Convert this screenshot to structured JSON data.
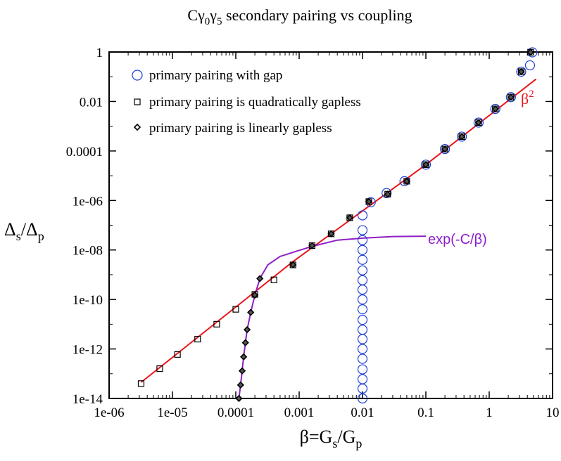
{
  "chart_data": {
    "type": "scatter",
    "title": "Cγ0γ5 secondary pairing vs coupling",
    "title_parts": {
      "main": "Cγ",
      "sub1": "0",
      "mid": "γ",
      "sub2": "5",
      "rest": " secondary pairing vs coupling"
    },
    "xlabel": "β=Gs/Gp",
    "xlabel_parts": {
      "a": "β=G",
      "sub_a": "s",
      "b": "/G",
      "sub_b": "p"
    },
    "ylabel": "Δs/Δp",
    "ylabel_parts": {
      "a": "Δ",
      "sub_a": "s",
      "b": "/Δ",
      "sub_b": "p"
    },
    "x_scale": "log",
    "y_scale": "log",
    "xlim": [
      1e-06,
      10
    ],
    "ylim": [
      1e-14,
      1
    ],
    "x_ticks": [
      {
        "value": 1e-06,
        "label": "1e-06"
      },
      {
        "value": 1e-05,
        "label": "1e-05"
      },
      {
        "value": 0.0001,
        "label": "0.0001"
      },
      {
        "value": 0.001,
        "label": "0.001"
      },
      {
        "value": 0.01,
        "label": "0.01"
      },
      {
        "value": 0.1,
        "label": "0.1"
      },
      {
        "value": 1,
        "label": "1"
      },
      {
        "value": 10,
        "label": "10"
      }
    ],
    "y_ticks": [
      {
        "value": 1,
        "label": "1"
      },
      {
        "value": 0.01,
        "label": "0.01"
      },
      {
        "value": 0.0001,
        "label": "0.0001"
      },
      {
        "value": 1e-06,
        "label": "1e-06"
      },
      {
        "value": 1e-08,
        "label": "1e-08"
      },
      {
        "value": 1e-10,
        "label": "1e-10"
      },
      {
        "value": 1e-12,
        "label": "1e-12"
      },
      {
        "value": 1e-14,
        "label": "1e-14"
      }
    ],
    "grid": false,
    "legend_position": "top-left",
    "series": [
      {
        "name": "primary pairing with gap",
        "marker": "circle",
        "color": "#1f3fd6",
        "points": [
          [
            0.01,
            1e-14
          ],
          [
            0.01,
            2.5e-14
          ],
          [
            0.01,
            6e-14
          ],
          [
            0.01,
            1.5e-13
          ],
          [
            0.01,
            4e-13
          ],
          [
            0.01,
            1e-12
          ],
          [
            0.01,
            2.5e-12
          ],
          [
            0.01,
            6e-12
          ],
          [
            0.01,
            1.5e-11
          ],
          [
            0.01,
            4e-11
          ],
          [
            0.01,
            1e-10
          ],
          [
            0.01,
            2.5e-10
          ],
          [
            0.01,
            6e-10
          ],
          [
            0.01,
            1.5e-09
          ],
          [
            0.01,
            4e-09
          ],
          [
            0.01,
            1e-08
          ],
          [
            0.01,
            2.5e-08
          ],
          [
            0.01,
            6.3e-08
          ],
          [
            0.01,
            2.5e-07
          ],
          [
            0.0135,
            8.5e-07
          ],
          [
            0.024,
            2e-06
          ],
          [
            0.046,
            6e-06
          ],
          [
            0.1,
            2.8e-05
          ],
          [
            0.2,
            0.00012
          ],
          [
            0.37,
            0.00038
          ],
          [
            0.68,
            0.0014
          ],
          [
            1.25,
            0.005
          ],
          [
            2.2,
            0.015
          ],
          [
            3.2,
            0.16
          ],
          [
            4.4,
            0.29
          ],
          [
            4.8,
            0.97
          ]
        ]
      },
      {
        "name": "primary pairing is quadratically gapless",
        "marker": "square",
        "color": "#000000",
        "points": [
          [
            3.2e-06,
            4e-14
          ],
          [
            6.3e-06,
            1.6e-13
          ],
          [
            1.2e-05,
            6e-13
          ],
          [
            2.5e-05,
            2.5e-12
          ],
          [
            5e-05,
            1e-11
          ],
          [
            0.0001,
            4e-11
          ],
          [
            0.0002,
            1.6e-10
          ],
          [
            0.0004,
            6.2e-10
          ],
          [
            0.0008,
            2.5e-09
          ],
          [
            0.0016,
            1.5e-08
          ],
          [
            0.0032,
            4.5e-08
          ],
          [
            0.0063,
            2e-07
          ],
          [
            0.0126,
            9e-07
          ],
          [
            0.025,
            1.8e-06
          ],
          [
            0.05,
            6e-06
          ],
          [
            0.1,
            2.8e-05
          ],
          [
            0.2,
            0.00012
          ],
          [
            0.37,
            0.00038
          ],
          [
            0.68,
            0.0014
          ],
          [
            1.25,
            0.005
          ],
          [
            2.2,
            0.015
          ],
          [
            3.2,
            0.16
          ],
          [
            4.5,
            0.98
          ]
        ]
      },
      {
        "name": "primary pairing is linearly gapless",
        "marker": "diamond",
        "color": "#000000",
        "points": [
          [
            0.000112,
            1e-14
          ],
          [
            0.000119,
            3.5e-14
          ],
          [
            0.000126,
            1.3e-13
          ],
          [
            0.000133,
            4.8e-13
          ],
          [
            0.000142,
            1.8e-12
          ],
          [
            0.000151,
            6e-12
          ],
          [
            0.000172,
            3e-11
          ],
          [
            0.0002,
            1.5e-10
          ],
          [
            0.00024,
            7e-10
          ],
          [
            0.0008,
            2.5e-09
          ],
          [
            0.0016,
            1.5e-08
          ],
          [
            0.0032,
            4.5e-08
          ],
          [
            0.0063,
            2e-07
          ],
          [
            0.0126,
            9e-07
          ],
          [
            0.025,
            1.8e-06
          ],
          [
            0.05,
            6e-06
          ],
          [
            0.1,
            2.8e-05
          ],
          [
            0.2,
            0.00012
          ],
          [
            0.37,
            0.00038
          ],
          [
            0.68,
            0.0014
          ],
          [
            1.25,
            0.005
          ],
          [
            2.2,
            0.015
          ],
          [
            3.2,
            0.16
          ],
          [
            4.5,
            0.98
          ]
        ]
      }
    ],
    "curves": [
      {
        "name": "β²",
        "label_parts": {
          "base": "β",
          "sup": "2"
        },
        "color": "#e8141b",
        "points": [
          [
            3.2e-06,
            4.5e-14
          ],
          [
            0.0008,
            3.4e-09
          ],
          [
            0.008,
            2.5e-07
          ],
          [
            0.1,
            2.8e-05
          ],
          [
            5.5,
            0.08
          ]
        ]
      },
      {
        "name": "exp(-C/β)",
        "color": "#8e1fc8",
        "points": [
          [
            0.000112,
            1e-14
          ],
          [
            0.000119,
            3.5e-14
          ],
          [
            0.000126,
            1.3e-13
          ],
          [
            0.000133,
            4.8e-13
          ],
          [
            0.000142,
            1.8e-12
          ],
          [
            0.000151,
            6e-12
          ],
          [
            0.000172,
            3e-11
          ],
          [
            0.0002,
            1.5e-10
          ],
          [
            0.00024,
            7e-10
          ],
          [
            0.00032,
            2.5e-09
          ],
          [
            0.0005,
            5.5e-09
          ],
          [
            0.0008,
            8e-09
          ],
          [
            0.0016,
            1.4e-08
          ],
          [
            0.004,
            2.5e-08
          ],
          [
            0.01,
            3e-08
          ],
          [
            0.03,
            3.5e-08
          ],
          [
            0.1,
            3.6e-08
          ]
        ]
      }
    ]
  },
  "colors": {
    "series_circle": "#1f3fd6",
    "beta2": "#e8141b",
    "exp": "#8e1fc8",
    "axis": "#000000"
  }
}
